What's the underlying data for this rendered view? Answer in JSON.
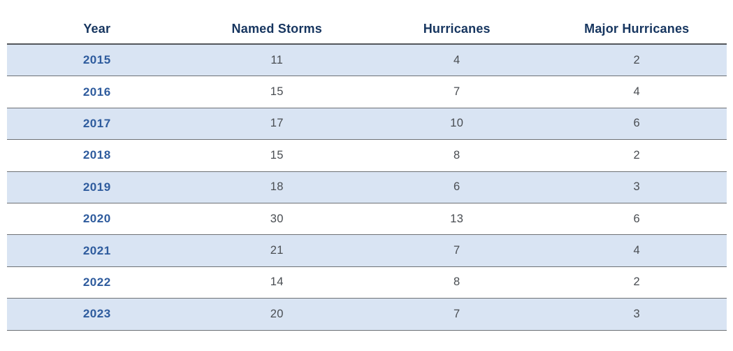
{
  "table": {
    "columns": [
      "Year",
      "Named Storms",
      "Hurricanes",
      "Major Hurricanes"
    ],
    "rows": [
      {
        "year": "2015",
        "named_storms": "11",
        "hurricanes": "4",
        "major_hurricanes": "2"
      },
      {
        "year": "2016",
        "named_storms": "15",
        "hurricanes": "7",
        "major_hurricanes": "4"
      },
      {
        "year": "2017",
        "named_storms": "17",
        "hurricanes": "10",
        "major_hurricanes": "6"
      },
      {
        "year": "2018",
        "named_storms": "15",
        "hurricanes": "8",
        "major_hurricanes": "2"
      },
      {
        "year": "2019",
        "named_storms": "18",
        "hurricanes": "6",
        "major_hurricanes": "3"
      },
      {
        "year": "2020",
        "named_storms": "30",
        "hurricanes": "13",
        "major_hurricanes": "6"
      },
      {
        "year": "2021",
        "named_storms": "21",
        "hurricanes": "7",
        "major_hurricanes": "4"
      },
      {
        "year": "2022",
        "named_storms": "14",
        "hurricanes": "8",
        "major_hurricanes": "2"
      },
      {
        "year": "2023",
        "named_storms": "20",
        "hurricanes": "7",
        "major_hurricanes": "3"
      }
    ]
  },
  "chart_data": {
    "type": "table",
    "title": "",
    "columns": [
      "Year",
      "Named Storms",
      "Hurricanes",
      "Major Hurricanes"
    ],
    "rows": [
      [
        2015,
        11,
        4,
        2
      ],
      [
        2016,
        15,
        7,
        4
      ],
      [
        2017,
        17,
        10,
        6
      ],
      [
        2018,
        15,
        8,
        2
      ],
      [
        2019,
        18,
        6,
        3
      ],
      [
        2020,
        30,
        13,
        6
      ],
      [
        2021,
        21,
        7,
        4
      ],
      [
        2022,
        14,
        8,
        2
      ],
      [
        2023,
        20,
        7,
        3
      ]
    ],
    "layout_hints": {
      "striped": true,
      "stripe_rows": "odd (2015, 2017, 2019, 2021, 2023)",
      "grid": "horizontal rules only"
    }
  },
  "colors": {
    "header_text": "#16355f",
    "year_text": "#2e5b9d",
    "value_text": "#494d52",
    "stripe_background": "#d9e4f3",
    "header_border": "#54575c",
    "row_border": "#6d7175",
    "page_background": "#ffffff"
  }
}
